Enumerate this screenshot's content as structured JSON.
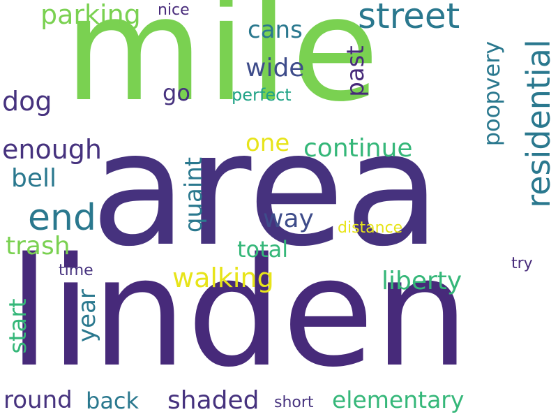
{
  "words": {
    "mile": "mile",
    "area": "area",
    "linden": "linden",
    "street": "street",
    "residential": "residential",
    "parking": "parking",
    "nice": "nice",
    "cans": "cans",
    "wide": "wide",
    "past": "past",
    "poopvery": "poopvery",
    "dog": "dog",
    "go": "go",
    "perfect": "perfect",
    "enough": "enough",
    "one": "one",
    "continue": "continue",
    "bell": "bell",
    "end": "end",
    "quaint": "quaint",
    "way": "way",
    "distance": "distance",
    "trash": "trash",
    "total": "total",
    "time": "time",
    "try": "try",
    "walking": "walking",
    "liberty": "liberty",
    "year": "year",
    "start": "start",
    "round": "round",
    "back": "back",
    "shaded": "shaded",
    "short": "short",
    "elementary": "elementary"
  },
  "colors": {
    "dark_purple": "#472a7a",
    "indigo": "#46327e",
    "slate_blue": "#3e4c8a",
    "teal_blue": "#31688e",
    "teal": "#2a788e",
    "sea_green": "#20a386",
    "green": "#35b779",
    "lime": "#7ad151",
    "light_lime": "#8ed645",
    "yellow": "#e7e419"
  }
}
